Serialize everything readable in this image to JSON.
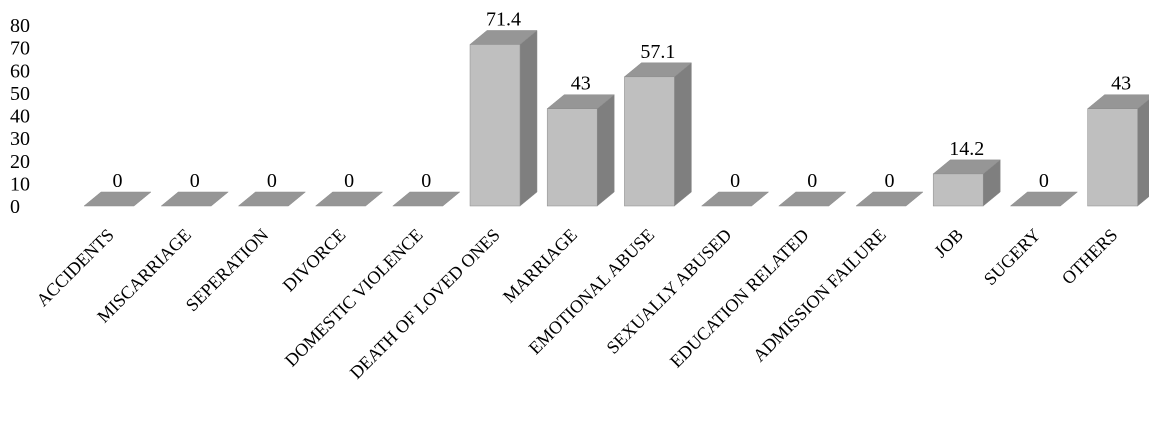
{
  "chart_data": {
    "type": "bar",
    "style": "3d-column",
    "categories": [
      "ACCIDENTS",
      "MISCARRIAGE",
      "SEPERATION",
      "DIVORCE",
      "DOMESTIC VIOLENCE",
      "DEATH OF LOVED ONES",
      "MARRIAGE",
      "EMOTIONAL ABUSE",
      "SEXUALLY ABUSED",
      "EDUCATION RELATED",
      "ADMISSION FAILURE",
      "JOB",
      "SUGERY",
      "OTHERS"
    ],
    "values": [
      0,
      0,
      0,
      0,
      0,
      71.4,
      43,
      57.1,
      0,
      0,
      0,
      14.2,
      0,
      43
    ],
    "data_labels": [
      "0",
      "0",
      "0",
      "0",
      "0",
      "71.4",
      "43",
      "57.1",
      "0",
      "0",
      "0",
      "14.2",
      "0",
      "43"
    ],
    "y_ticks": [
      "0",
      "10",
      "20",
      "30",
      "40",
      "50",
      "60",
      "70",
      "80"
    ],
    "ylim": [
      0,
      80
    ],
    "title": "",
    "xlabel": "",
    "ylabel": "",
    "grid": false,
    "legend": "none",
    "colors": {
      "front": "#bfbfbf",
      "side": "#7f7f7f",
      "top": "#969696",
      "edge": "#8c8c8c"
    }
  }
}
